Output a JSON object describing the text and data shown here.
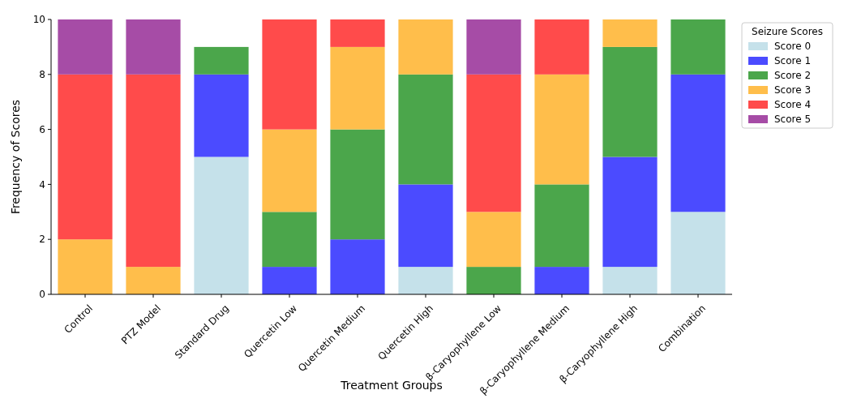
{
  "chart_data": {
    "type": "bar",
    "stacked": true,
    "xlabel": "Treatment Groups",
    "ylabel": "Frequency of Scores",
    "legend_title": "Seizure Scores",
    "legend": "right",
    "categories": [
      "Control",
      "PTZ Model",
      "Standard Drug",
      "Quercetin Low",
      "Quercetin Medium",
      "Quercetin High",
      "β-Caryophyllene Low",
      "β-Caryophyllene Medium",
      "β-Caryophyllene High",
      "Combination"
    ],
    "series": [
      {
        "name": "Score 0",
        "color": "#c5e1ea",
        "values": [
          0,
          0,
          5,
          0,
          0,
          1,
          0,
          0,
          1,
          3
        ]
      },
      {
        "name": "Score 1",
        "color": "#4b4bff",
        "values": [
          0,
          0,
          3,
          1,
          2,
          3,
          0,
          1,
          4,
          5
        ]
      },
      {
        "name": "Score 2",
        "color": "#4ba64b",
        "values": [
          0,
          0,
          1,
          2,
          4,
          4,
          1,
          3,
          4,
          2
        ]
      },
      {
        "name": "Score 3",
        "color": "#ffbe4b",
        "values": [
          2,
          1,
          0,
          3,
          3,
          2,
          2,
          4,
          1,
          0
        ]
      },
      {
        "name": "Score 4",
        "color": "#ff4b4b",
        "values": [
          6,
          7,
          0,
          4,
          1,
          0,
          5,
          2,
          0,
          0
        ]
      },
      {
        "name": "Score 5",
        "color": "#a64ca6",
        "values": [
          2,
          2,
          0,
          0,
          0,
          0,
          2,
          0,
          0,
          0
        ]
      }
    ],
    "ylim": [
      0,
      10
    ],
    "yticks": [
      0,
      2,
      4,
      6,
      8,
      10
    ]
  }
}
